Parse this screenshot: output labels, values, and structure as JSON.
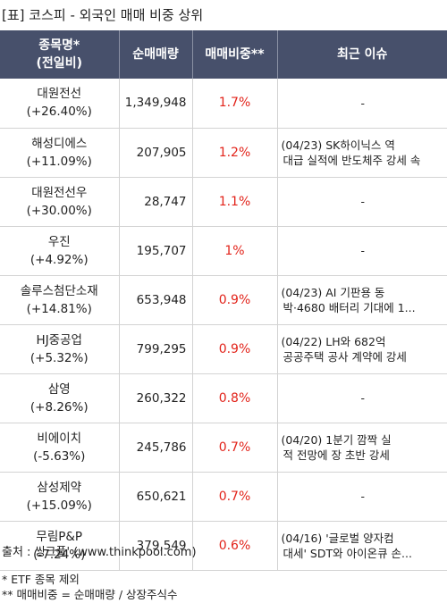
{
  "title": "[표] 코스피 - 외국인 매매 비중 상위",
  "header": {
    "name_line1": "종목명*",
    "name_line2": "(전일비)",
    "volume": "순매매량",
    "ratio": "매매비중**",
    "issue": "최근 이슈"
  },
  "rows": [
    {
      "name": "대원전선",
      "change": "(+26.40%)",
      "volume": "1,349,948",
      "ratio": "1.7%",
      "issue1": "-",
      "issue2": ""
    },
    {
      "name": "해성디에스",
      "change": "(+11.09%)",
      "volume": "207,905",
      "ratio": "1.2%",
      "issue1": "(04/23) SK하이닉스 역",
      "issue2": "대급 실적에 반도체주 강세 속"
    },
    {
      "name": "대원전선우",
      "change": "(+30.00%)",
      "volume": "28,747",
      "ratio": "1.1%",
      "issue1": "-",
      "issue2": ""
    },
    {
      "name": "우진",
      "change": "(+4.92%)",
      "volume": "195,707",
      "ratio": "1%",
      "issue1": "-",
      "issue2": ""
    },
    {
      "name": "솔루스첨단소재",
      "change": "(+14.81%)",
      "volume": "653,948",
      "ratio": "0.9%",
      "issue1": "(04/23) AI 기판용 동",
      "issue2": "박·4680 배터리 기대에 1..."
    },
    {
      "name": "HJ중공업",
      "change": "(+5.32%)",
      "volume": "799,295",
      "ratio": "0.9%",
      "issue1": "(04/22) LH와 682억",
      "issue2": "공공주택 공사 계약에 강세"
    },
    {
      "name": "삼영",
      "change": "(+8.26%)",
      "volume": "260,322",
      "ratio": "0.8%",
      "issue1": "-",
      "issue2": ""
    },
    {
      "name": "비에이치",
      "change": "(-5.63%)",
      "volume": "245,786",
      "ratio": "0.7%",
      "issue1": "(04/20) 1분기 깜짝 실",
      "issue2": "적 전망에 장 초반 강세"
    },
    {
      "name": "삼성제약",
      "change": "(+15.09%)",
      "volume": "650,621",
      "ratio": "0.7%",
      "issue1": "-",
      "issue2": ""
    },
    {
      "name": "무림P&P",
      "change": "(-7.24%)",
      "volume": "379,549",
      "ratio": "0.6%",
      "issue1": "(04/16) '글로벌 양자컴",
      "issue2": "대세' SDT와 아이온큐 손..."
    }
  ],
  "source": "출처 : 씽크풀' (www.thinkpool.com)",
  "footnote1": "* ETF 종목 제외",
  "footnote2": "** 매매비중 = 순매매량 / 상장주식수",
  "colors": {
    "header_bg": "#47506b",
    "ratio_text": "#e2231a",
    "row_border": "#d3d3d3"
  }
}
